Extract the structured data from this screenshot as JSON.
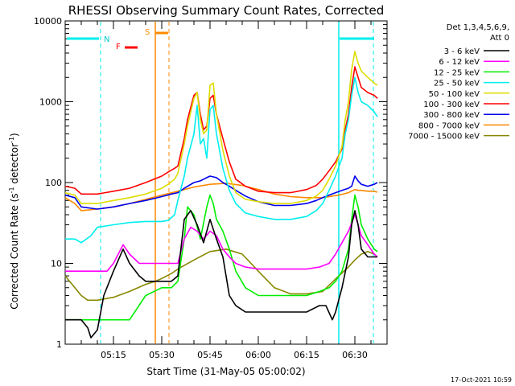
{
  "chart_data": {
    "type": "line",
    "title": "RHESSI Observing Summary Count Rates, Corrected",
    "xlabel": "Start Time (31-May-05 05:00:02)",
    "ylabel": "Corrected Count Rate (s⁻¹ detector⁻¹)",
    "y_scale": "log",
    "ylim": [
      1,
      10000
    ],
    "xlim_minutes": [
      0,
      100
    ],
    "x_ticks": [
      {
        "minute": 15,
        "label": "05:15"
      },
      {
        "minute": 30,
        "label": "05:30"
      },
      {
        "minute": 45,
        "label": "05:45"
      },
      {
        "minute": 60,
        "label": "06:00"
      },
      {
        "minute": 75,
        "label": "06:15"
      },
      {
        "minute": 90,
        "label": "06:30"
      }
    ],
    "y_ticks": [
      {
        "value": 1,
        "label": "1"
      },
      {
        "value": 10,
        "label": "10"
      },
      {
        "value": 100,
        "label": "100"
      },
      {
        "value": 1000,
        "label": "1000"
      },
      {
        "value": 10000,
        "label": "10000"
      }
    ],
    "legend_header": [
      "Det 1,3,4,5,6,9,",
      "Att 0"
    ],
    "legend_position": "right",
    "grid": false,
    "annotations": {
      "night_label": "N",
      "flare_label": "F",
      "saa_label": "S",
      "timestamp": "17-Oct-2021 10:59"
    },
    "series": [
      {
        "name": "3 - 6 keV",
        "color": "#000000",
        "x": [
          0,
          5,
          7,
          8,
          10,
          12,
          15,
          18,
          20,
          23,
          25,
          28,
          30,
          33,
          35,
          37,
          39,
          41,
          43,
          45,
          47,
          49,
          51,
          53,
          56,
          60,
          65,
          70,
          75,
          79,
          81,
          83,
          84,
          86,
          88,
          89,
          90,
          91,
          92,
          94,
          96,
          97
        ],
        "y": [
          2,
          2,
          1.6,
          1.2,
          1.5,
          4,
          8,
          15,
          10,
          7,
          6,
          6,
          6,
          6,
          7,
          35,
          45,
          30,
          18,
          35,
          20,
          12,
          4,
          3,
          2.5,
          2.5,
          2.5,
          2.5,
          2.5,
          3,
          3,
          2,
          2.5,
          5,
          12,
          30,
          45,
          30,
          15,
          12,
          12,
          12
        ]
      },
      {
        "name": "6 - 12 keV",
        "color": "#ff00ff",
        "x": [
          0,
          5,
          10,
          13,
          15,
          18,
          20,
          23,
          25,
          28,
          30,
          33,
          35,
          37,
          39,
          41,
          43,
          45,
          47,
          49,
          51,
          53,
          56,
          60,
          65,
          70,
          75,
          79,
          82,
          84,
          86,
          88,
          90,
          91,
          92,
          94,
          96,
          97
        ],
        "y": [
          8,
          8,
          8,
          8,
          10,
          17,
          13,
          10,
          10,
          10,
          10,
          10,
          10,
          20,
          28,
          25,
          20,
          25,
          22,
          15,
          12,
          10,
          9,
          8.5,
          8.5,
          8.5,
          8.5,
          9,
          10,
          13,
          18,
          25,
          40,
          30,
          22,
          17,
          13,
          12
        ]
      },
      {
        "name": "12 - 25 keV",
        "color": "#00ee00",
        "x": [
          0,
          5,
          10,
          15,
          20,
          25,
          30,
          33,
          35,
          37,
          38,
          40,
          42,
          44,
          45,
          46,
          47,
          49,
          51,
          53,
          56,
          60,
          65,
          70,
          75,
          79,
          82,
          84,
          86,
          88,
          89,
          90,
          91,
          92,
          94,
          96,
          97
        ],
        "y": [
          2,
          2,
          2,
          2,
          2,
          4,
          5,
          5,
          6,
          20,
          50,
          40,
          20,
          50,
          70,
          55,
          35,
          25,
          15,
          8,
          5,
          4,
          4,
          4,
          4,
          4.5,
          5,
          6,
          8,
          15,
          35,
          70,
          50,
          30,
          20,
          15,
          14
        ]
      },
      {
        "name": "25 - 50 keV",
        "color": "#00eeee",
        "x": [
          0,
          3,
          5,
          8,
          10,
          15,
          20,
          25,
          30,
          32,
          34,
          35,
          37,
          38,
          40,
          41,
          42,
          43,
          44,
          45,
          46,
          47,
          49,
          51,
          53,
          56,
          60,
          65,
          70,
          75,
          78,
          80,
          82,
          84,
          86,
          87,
          88,
          89,
          90,
          91,
          92,
          94,
          96,
          97
        ],
        "y": [
          20,
          20,
          18,
          22,
          28,
          30,
          32,
          33,
          33,
          34,
          40,
          60,
          120,
          200,
          400,
          900,
          300,
          350,
          200,
          800,
          900,
          400,
          150,
          80,
          55,
          42,
          38,
          35,
          35,
          38,
          45,
          55,
          80,
          120,
          200,
          400,
          600,
          1200,
          2000,
          1300,
          1000,
          900,
          750,
          650
        ]
      },
      {
        "name": "50 - 100 keV",
        "color": "#dddd00",
        "x": [
          0,
          3,
          5,
          10,
          15,
          20,
          25,
          30,
          32,
          34,
          35,
          37,
          38,
          40,
          41,
          42,
          43,
          44,
          45,
          46,
          47,
          49,
          51,
          53,
          56,
          60,
          65,
          70,
          75,
          78,
          80,
          82,
          84,
          86,
          87,
          88,
          89,
          90,
          91,
          92,
          94,
          96,
          97
        ],
        "y": [
          75,
          70,
          55,
          55,
          60,
          65,
          72,
          85,
          95,
          110,
          130,
          300,
          500,
          1100,
          1300,
          600,
          400,
          450,
          1600,
          1700,
          700,
          250,
          120,
          75,
          62,
          58,
          55,
          55,
          60,
          68,
          80,
          110,
          160,
          280,
          600,
          1000,
          2500,
          4200,
          3000,
          2400,
          2000,
          1700,
          1600
        ]
      },
      {
        "name": "100 - 300 keV",
        "color": "#ff0000",
        "x": [
          0,
          3,
          5,
          10,
          15,
          20,
          25,
          30,
          32,
          34,
          35,
          37,
          38,
          40,
          41,
          42,
          43,
          44,
          45,
          46,
          47,
          49,
          51,
          53,
          56,
          60,
          65,
          70,
          75,
          78,
          80,
          82,
          84,
          86,
          87,
          88,
          89,
          90,
          91,
          92,
          94,
          96,
          97
        ],
        "y": [
          90,
          85,
          72,
          72,
          78,
          85,
          100,
          120,
          135,
          150,
          160,
          350,
          600,
          1200,
          1300,
          700,
          450,
          500,
          1100,
          1200,
          700,
          350,
          180,
          110,
          90,
          78,
          75,
          75,
          82,
          92,
          110,
          140,
          180,
          260,
          450,
          700,
          1500,
          2700,
          2000,
          1500,
          1300,
          1200,
          1100
        ]
      },
      {
        "name": "300 - 800 keV",
        "color": "#0000ee",
        "x": [
          0,
          3,
          5,
          10,
          15,
          20,
          25,
          30,
          33,
          35,
          37,
          40,
          42,
          44,
          45,
          47,
          49,
          51,
          53,
          56,
          60,
          65,
          70,
          75,
          78,
          80,
          82,
          84,
          86,
          88,
          89,
          90,
          91,
          92,
          94,
          96,
          97
        ],
        "y": [
          70,
          65,
          50,
          47,
          50,
          55,
          60,
          67,
          72,
          75,
          85,
          100,
          105,
          115,
          120,
          115,
          100,
          90,
          80,
          68,
          58,
          52,
          52,
          55,
          60,
          65,
          70,
          75,
          80,
          85,
          90,
          120,
          105,
          95,
          90,
          95,
          100
        ]
      },
      {
        "name": "800 - 7000 keV",
        "color": "#ff8800",
        "x": [
          0,
          3,
          5,
          10,
          15,
          20,
          25,
          30,
          35,
          40,
          45,
          50,
          55,
          60,
          65,
          70,
          75,
          80,
          85,
          88,
          90,
          91,
          92,
          94,
          96,
          97
        ],
        "y": [
          65,
          55,
          45,
          47,
          50,
          55,
          62,
          70,
          78,
          88,
          95,
          98,
          92,
          82,
          72,
          67,
          65,
          65,
          70,
          75,
          82,
          80,
          80,
          78,
          78,
          76
        ]
      },
      {
        "name": "7000 - 15000 keV",
        "color": "#888800",
        "x": [
          0,
          3,
          5,
          7,
          8,
          10,
          15,
          20,
          25,
          28,
          30,
          33,
          35,
          40,
          45,
          50,
          55,
          60,
          65,
          70,
          75,
          80,
          85,
          88,
          90,
          92,
          94,
          96,
          97
        ],
        "y": [
          7,
          5,
          4,
          3.5,
          3.5,
          3.5,
          3.8,
          4.5,
          5.5,
          6,
          6.5,
          7.5,
          8.5,
          11,
          14,
          15,
          13,
          8,
          5,
          4.2,
          4.2,
          4.5,
          7,
          9,
          11,
          13,
          14,
          13,
          12
        ]
      }
    ]
  }
}
